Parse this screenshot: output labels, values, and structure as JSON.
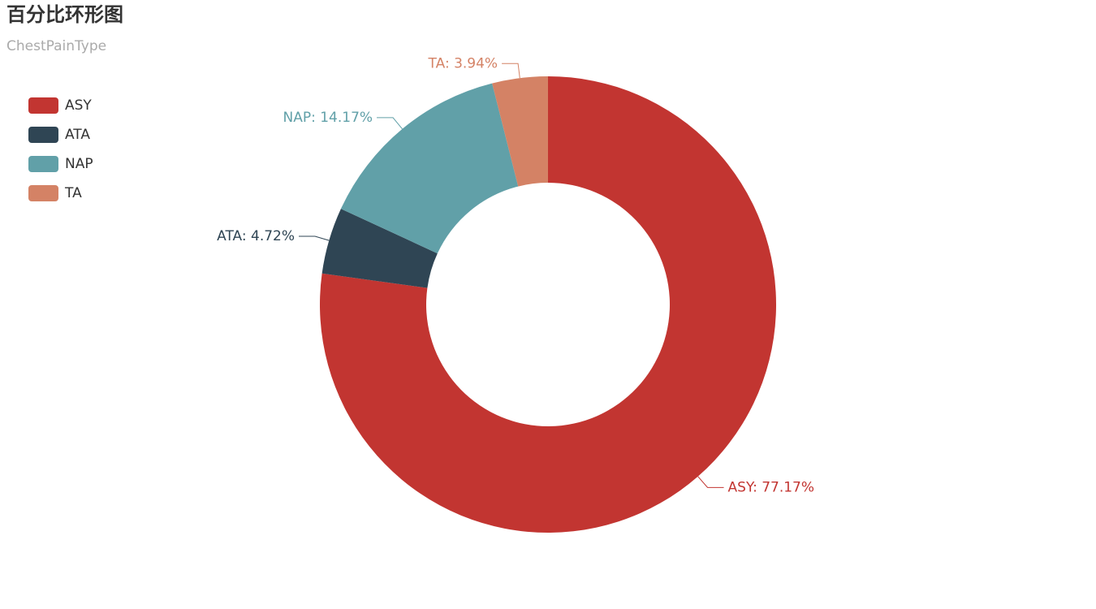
{
  "chart_data": {
    "type": "donut",
    "title": "百分比环形图",
    "subtitle": "ChestPainType",
    "categories": [
      "ASY",
      "ATA",
      "NAP",
      "TA"
    ],
    "values": [
      77.17,
      4.72,
      14.17,
      3.94
    ],
    "value_labels": [
      "ASY: 77.17%",
      "ATA: 4.72%",
      "NAP: 14.17%",
      "TA: 3.94%"
    ],
    "colors": [
      "#c23531",
      "#2f4554",
      "#61a0a8",
      "#d48265"
    ],
    "legend": "top-left"
  }
}
